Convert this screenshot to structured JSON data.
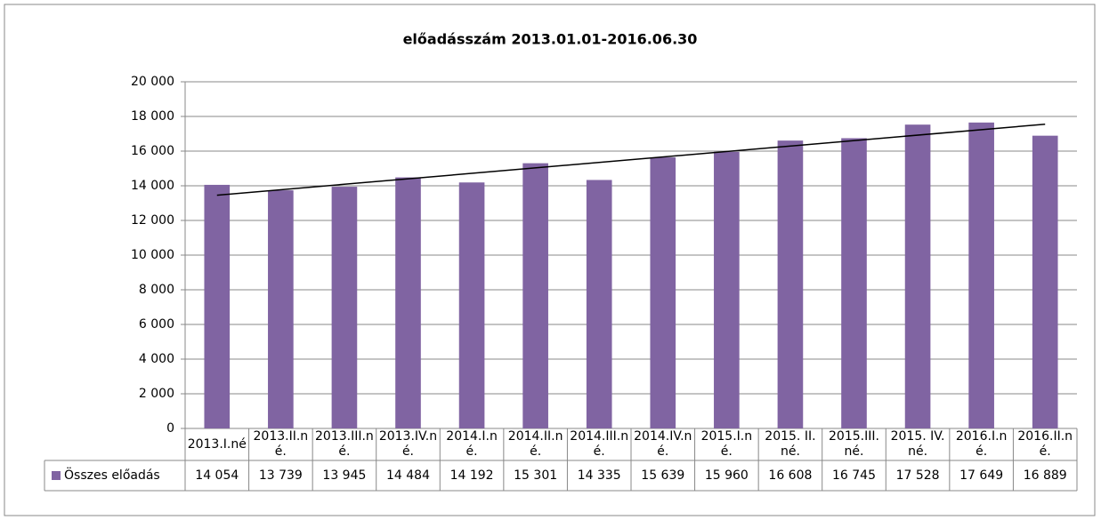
{
  "chart_data": {
    "type": "bar",
    "title": "előadásszám 2013.01.01-2016.06.30",
    "categories": [
      "2013.I.né",
      "2013.II.né.",
      "2013.III.né.",
      "2013.IV.né.",
      "2014.I.né.",
      "2014.II.né.",
      "2014.III.né.",
      "2014.IV.né.",
      "2015.I.né.",
      "2015. II. né.",
      "2015.III. né.",
      "2015. IV. né.",
      "2016.I.né.",
      "2016.II.né."
    ],
    "series": [
      {
        "name": "Összes előadás",
        "color": "#8064a2",
        "values": [
          14054,
          13739,
          13945,
          14484,
          14192,
          15301,
          14335,
          15639,
          15960,
          16608,
          16745,
          17528,
          17649,
          16889
        ],
        "value_labels": [
          "14 054",
          "13 739",
          "13 945",
          "14 484",
          "14 192",
          "15 301",
          "14 335",
          "15 639",
          "15 960",
          "16 608",
          "16 745",
          "17 528",
          "17 649",
          "16 889"
        ]
      }
    ],
    "ylim": [
      0,
      20000
    ],
    "yticks": [
      0,
      {
        "value": 2000,
        "label": "2 000"
      },
      {
        "value": 4000,
        "label": "4 000"
      },
      {
        "value": 6000,
        "label": "6 000"
      },
      {
        "value": 8000,
        "label": "8 000"
      },
      {
        "value": 10000,
        "label": "10 000"
      },
      {
        "value": 12000,
        "label": "12 000"
      },
      {
        "value": 14000,
        "label": "14 000"
      },
      {
        "value": 16000,
        "label": "16 000"
      },
      {
        "value": 18000,
        "label": "18 000"
      },
      {
        "value": 20000,
        "label": "20 000"
      }
    ],
    "grid": true,
    "trendline": "linear",
    "data_table": true
  }
}
